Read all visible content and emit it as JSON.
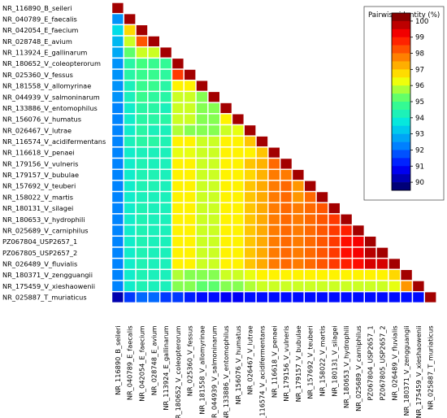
{
  "chart_data": {
    "type": "heatmap",
    "layout": "lower-triangle",
    "labels": [
      "NR_116890_B_seileri",
      "NR_040789_E_faecalis",
      "NR_042054_E_faecium",
      "NR_028748_E_avium",
      "NR_113924_E_gallinarum",
      "NR_180652_V_coleopterorum",
      "NR_025360_V_fessus",
      "NR_181558_V_allomyrinae",
      "NR_044939_V_salmoninarum",
      "NR_133886_V_entomophilus",
      "NR_156076_V_humatus",
      "NR_026467_V_lutrae",
      "NR_116574_V_acidifermentans",
      "NR_116618_V_penaei",
      "NR_179156_V_vulneris",
      "NR_179157_V_bubulae",
      "NR_157692_V_teuberi",
      "NR_158022_V_martis",
      "NR_180131_V_silagei",
      "NR_180653_V_hydrophili",
      "NR_025689_V_carniphilus",
      "PZ067804_USP2657_1",
      "PZ067805_USP2657_2",
      "NR_026489_V_fluvialis",
      "NR_180371_V_zengguangii",
      "NR_175459_V_xieshaowenii",
      "NR_025887_T_muriaticus"
    ],
    "matrix": [
      [
        100
      ],
      [
        92.5,
        100
      ],
      [
        93.5,
        96.8,
        100
      ],
      [
        93,
        96,
        98.2,
        100
      ],
      [
        92.8,
        95.2,
        96,
        96,
        100
      ],
      [
        92.5,
        94.5,
        95,
        94.8,
        94.7,
        100
      ],
      [
        92.5,
        94.5,
        94.8,
        94.8,
        94.6,
        98.5,
        100
      ],
      [
        92.5,
        94.2,
        94.8,
        94.8,
        94.5,
        96.5,
        96.5,
        100
      ],
      [
        92.5,
        94.2,
        94.8,
        94.6,
        94.5,
        96,
        96,
        95.5,
        100
      ],
      [
        92.3,
        94,
        94.5,
        94.5,
        94.2,
        96,
        96,
        95.5,
        95.5,
        100
      ],
      [
        92.3,
        94,
        94.5,
        94.5,
        94.5,
        96,
        96,
        95.5,
        95.5,
        96.5,
        100
      ],
      [
        92.3,
        94,
        94.5,
        94.2,
        94.2,
        95.8,
        95.5,
        95.5,
        95.5,
        96,
        96.2,
        100
      ],
      [
        92.3,
        94.2,
        94.5,
        94.5,
        94.3,
        96.5,
        96.5,
        96,
        96,
        96.5,
        96.5,
        97,
        100
      ],
      [
        92.3,
        94,
        94.2,
        94.2,
        94.2,
        96.2,
        96.2,
        96,
        96,
        96.5,
        96.5,
        96.5,
        97,
        100
      ],
      [
        92.3,
        94,
        94.3,
        94.2,
        94.2,
        96.5,
        96.5,
        96,
        96,
        96.5,
        96.5,
        97,
        97.2,
        98,
        100
      ],
      [
        92.3,
        94,
        94.3,
        94.3,
        94.2,
        96.5,
        96.5,
        96,
        96,
        96.5,
        96.5,
        96.8,
        97.2,
        97.8,
        97.8,
        100
      ],
      [
        92.3,
        94,
        94.3,
        94.3,
        94.2,
        96.5,
        96.5,
        96,
        96,
        96.5,
        96.5,
        97,
        97.3,
        97.8,
        98,
        97.5,
        100
      ],
      [
        92.3,
        94,
        94.2,
        94.2,
        94.2,
        96.5,
        96.5,
        96,
        96,
        96.5,
        96.5,
        97,
        97.3,
        97.8,
        98,
        97.5,
        98,
        100
      ],
      [
        92.3,
        94,
        94.3,
        94.2,
        94.2,
        96.5,
        96.5,
        96,
        96,
        96.5,
        96.5,
        97,
        97.3,
        97.8,
        98,
        97.8,
        98,
        98.2,
        100
      ],
      [
        92.3,
        94,
        94.3,
        94.2,
        94.2,
        96.5,
        96.5,
        96,
        96,
        96.5,
        96.5,
        97,
        97.3,
        97.8,
        98,
        97.8,
        98,
        98.2,
        98.5,
        100
      ],
      [
        92.3,
        94,
        94.3,
        94.2,
        94.2,
        96.5,
        96.5,
        96,
        96,
        96.5,
        96.5,
        97,
        97.3,
        97.8,
        98,
        97.8,
        98,
        98.2,
        98.5,
        98.8,
        100
      ],
      [
        92.3,
        94,
        94.3,
        94.2,
        94.2,
        96.5,
        96.5,
        96,
        96,
        96.5,
        96.5,
        97,
        97.3,
        97.8,
        98,
        97.8,
        98,
        98.2,
        98.5,
        99,
        99.2,
        100
      ],
      [
        92.3,
        94,
        94.3,
        94.2,
        94.2,
        96.5,
        96.5,
        96,
        96,
        96.5,
        96.5,
        97,
        97.3,
        97.8,
        98,
        97.8,
        98,
        98.2,
        98.5,
        99,
        99.2,
        99.8,
        100
      ],
      [
        92.3,
        94,
        94.3,
        94.2,
        94.2,
        96.5,
        96.5,
        96,
        96,
        96.5,
        96.5,
        97,
        97.3,
        97.8,
        98,
        97.8,
        98,
        98.2,
        98.5,
        98.8,
        99,
        99.5,
        99.5,
        100
      ],
      [
        92.3,
        94,
        94.3,
        94.2,
        94.2,
        95.8,
        95.5,
        95.5,
        95.5,
        96,
        96,
        96.2,
        96.5,
        96.5,
        96.5,
        96.5,
        96.5,
        96.5,
        96.5,
        96.5,
        96.5,
        96.5,
        96.5,
        96.8,
        100
      ],
      [
        92.3,
        94,
        94.3,
        94.2,
        94.2,
        95.5,
        95.5,
        95.2,
        95.2,
        95.5,
        95.5,
        95.8,
        96,
        96,
        96,
        96,
        96,
        96,
        96,
        96,
        96,
        96,
        96,
        96.2,
        97.5,
        100
      ],
      [
        90.2,
        91.5,
        92,
        92,
        91.5,
        91.5,
        91.2,
        91,
        91,
        90.8,
        90.8,
        91,
        91,
        91,
        91,
        91,
        91,
        91,
        91,
        91,
        91,
        91,
        91,
        91,
        91,
        91,
        100
      ]
    ],
    "legend": {
      "title": "Pairwise identity (%)",
      "ticks": [
        100,
        99,
        98,
        97,
        96,
        95,
        94,
        93,
        92,
        91,
        90
      ],
      "range": [
        89.5,
        100.5
      ],
      "placement": "top-right"
    },
    "colors": {
      "scale": [
        "#00005a",
        "#0000ff",
        "#0080ff",
        "#00e6e6",
        "#40ff80",
        "#ffff00",
        "#ff8000",
        "#ff0000",
        "#6e0000"
      ],
      "cell_border": "#ffffff"
    }
  }
}
